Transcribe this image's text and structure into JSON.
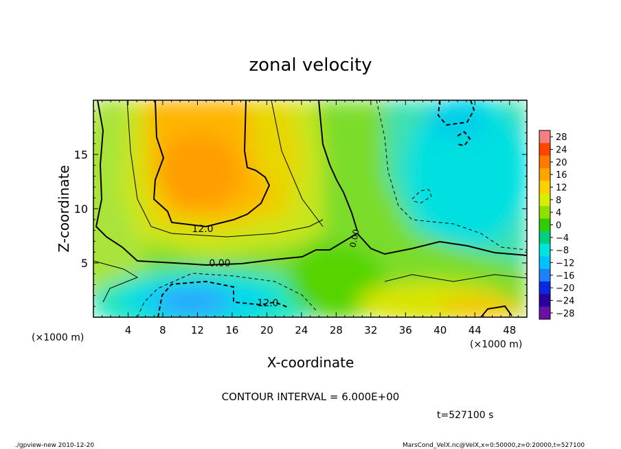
{
  "chart_data": {
    "type": "heatmap",
    "title": "zonal velocity",
    "xlabel": "X-coordinate",
    "ylabel": "Z-coordinate",
    "x_units": "(×1000 m)",
    "y_units": "(×1000 m)",
    "xlim": [
      0,
      50
    ],
    "ylim": [
      0,
      20
    ],
    "x_ticks": [
      "4",
      "8",
      "12",
      "16",
      "20",
      "24",
      "28",
      "32",
      "36",
      "40",
      "44",
      "48"
    ],
    "y_ticks": [
      "5",
      "10",
      "15"
    ],
    "colorbar_levels": [
      "28",
      "24",
      "20",
      "16",
      "12",
      "8",
      "4",
      "0",
      "−4",
      "−8",
      "−12",
      "−16",
      "−20",
      "−24",
      "−28"
    ],
    "colorbar_colors": [
      "#f58080",
      "#ff4500",
      "#ff7a00",
      "#ffa500",
      "#ffd000",
      "#d7ee00",
      "#8fe000",
      "#2ecf00",
      "#00d080",
      "#00e4e0",
      "#00c2ff",
      "#1e7fff",
      "#0a28e0",
      "#2b00a0",
      "#6a0fa8"
    ],
    "contour_labels": [
      "12.0",
      "0.00",
      "12.0",
      "0.00"
    ],
    "contour_interval": "CONTOUR INTERVAL = 6.000E+00",
    "time_label": "t=527100 s",
    "footer_left": "./gpview-new  2010-12-20",
    "footer_right": "MarsCond_VelX.nc@VelX,x=0:50000,z=0:20000,t=527100",
    "grid": false
  }
}
